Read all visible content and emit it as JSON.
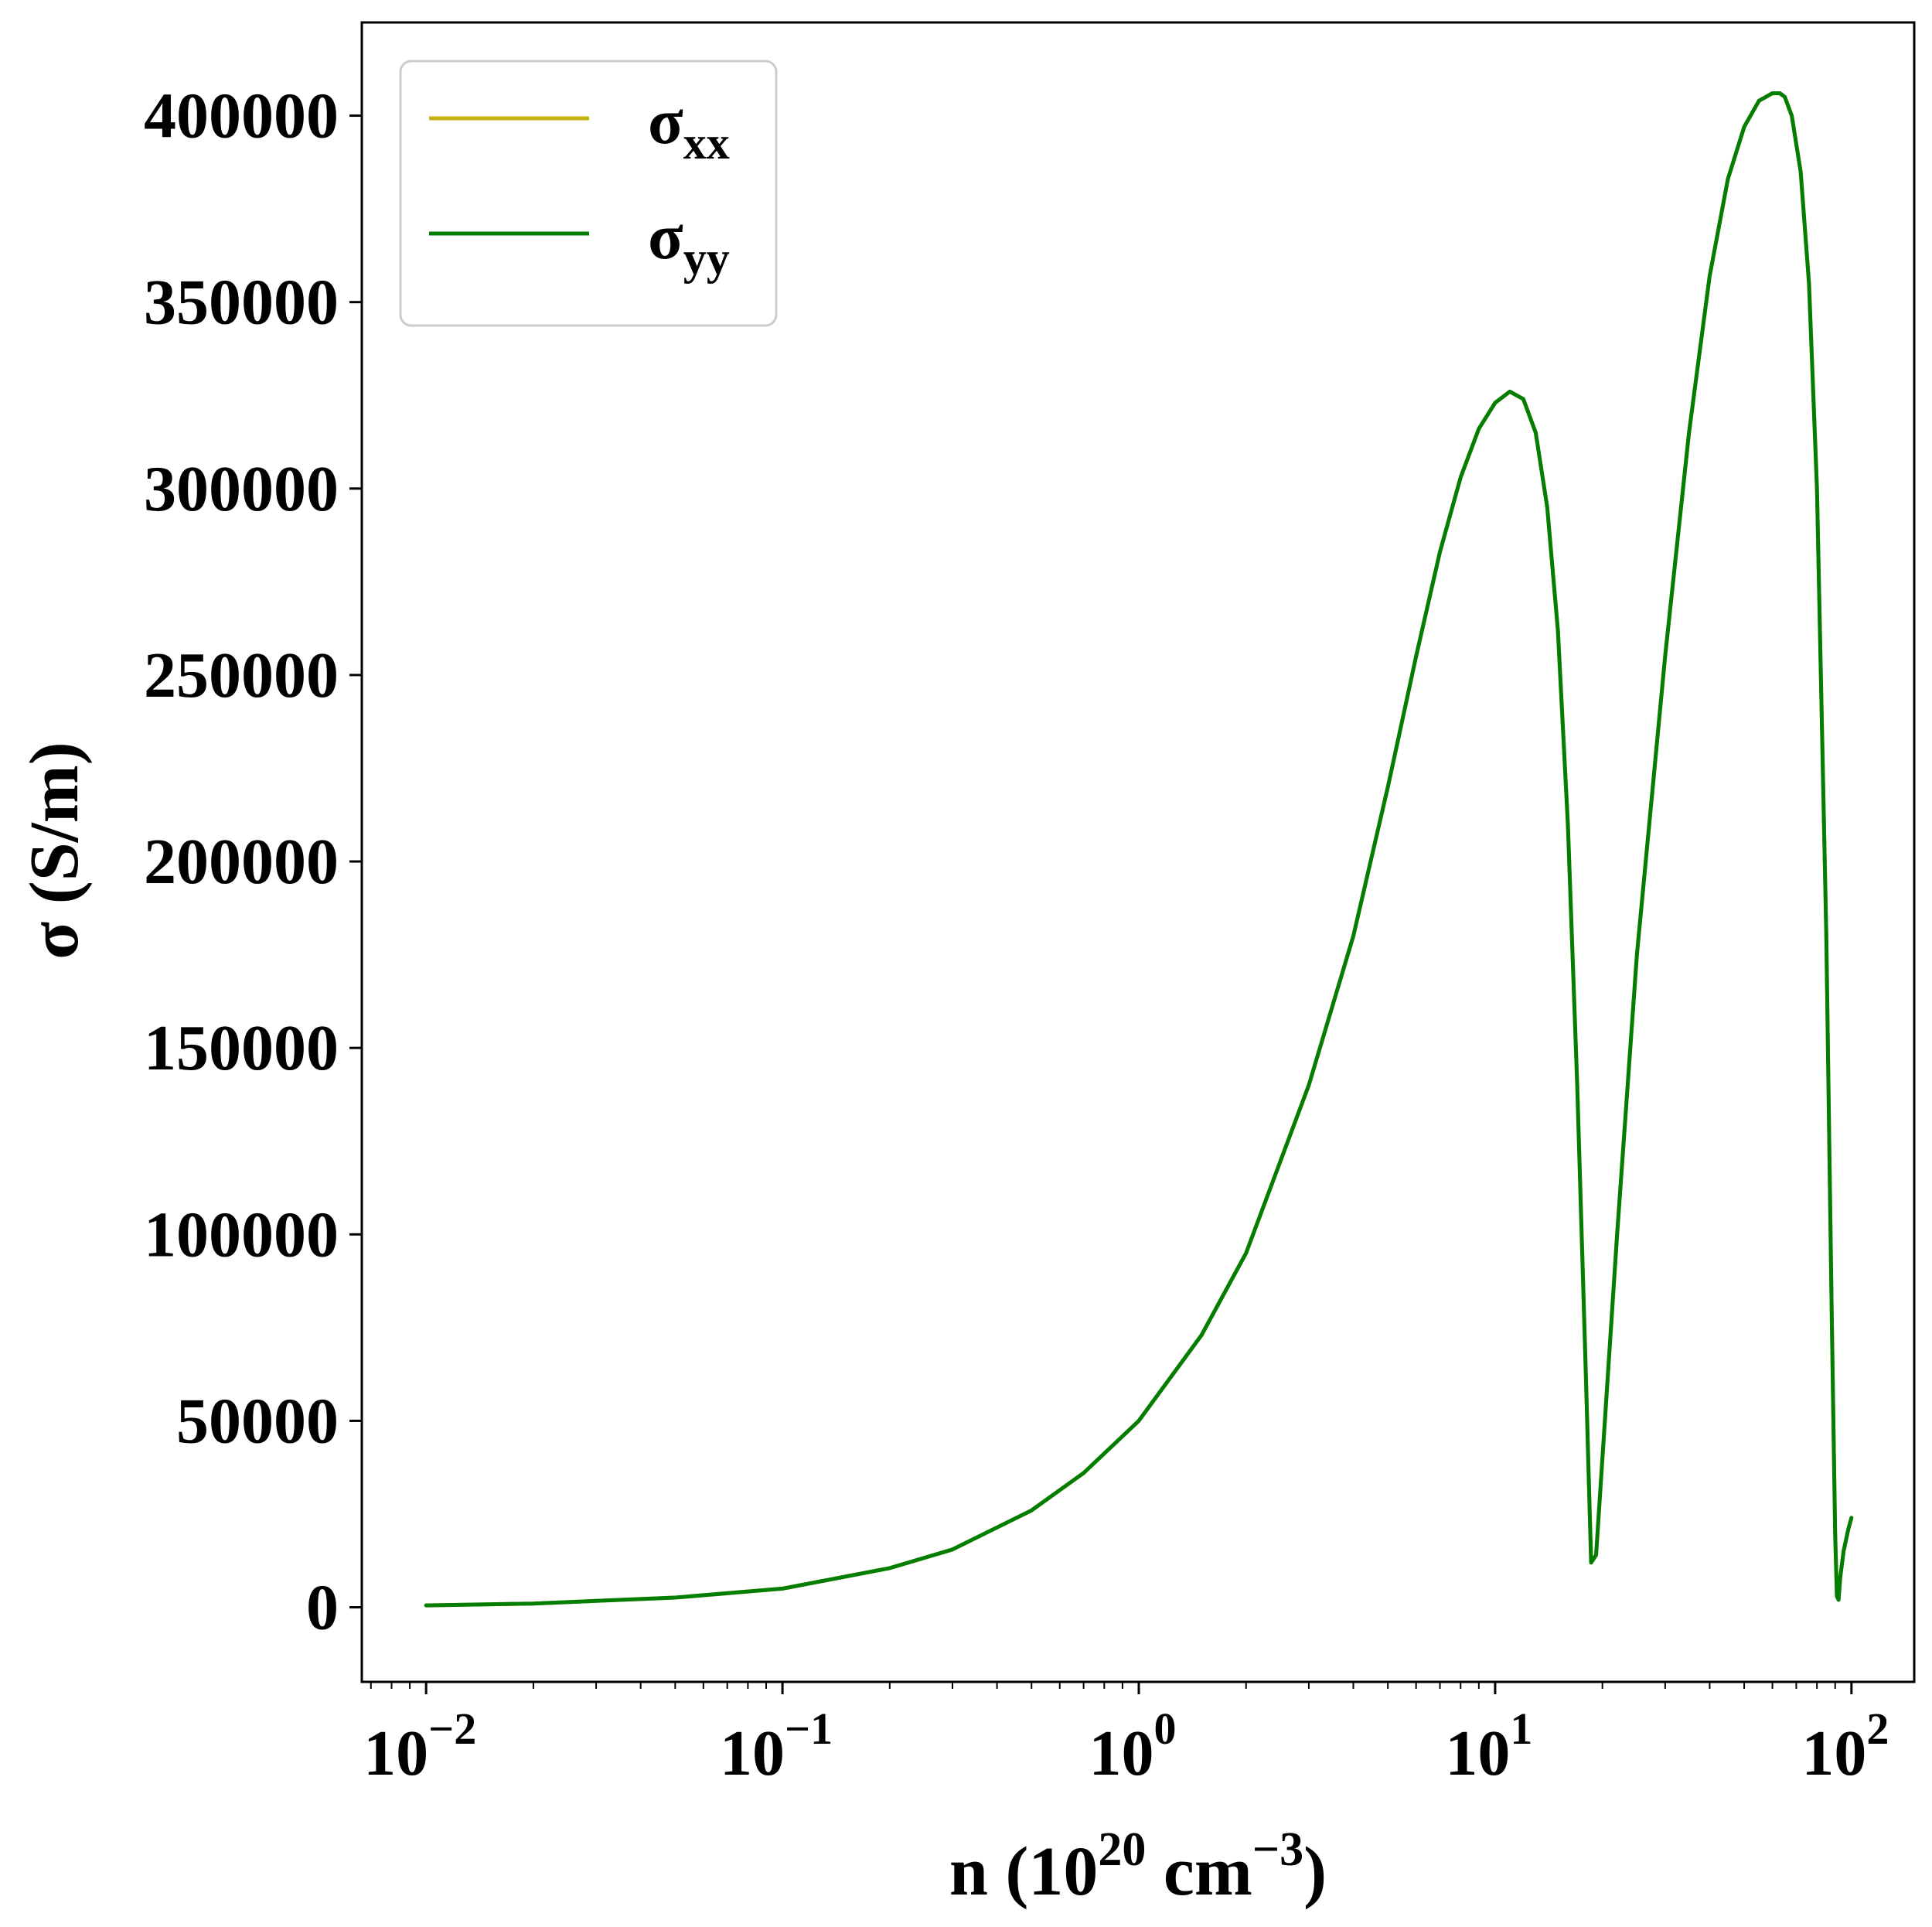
{
  "chart_data": {
    "type": "line",
    "xlabel": {
      "base": "n (10",
      "exp1": "20",
      "mid": " cm",
      "exp2": "−3",
      "end": ")"
    },
    "ylabel": "σ (S/m)",
    "xscale": "log",
    "xlim": [
      0.0066,
      150
    ],
    "ylim": [
      -20000,
      425000
    ],
    "grid": false,
    "legend_position": "upper-left",
    "x_ticks": [
      {
        "value": 0.01,
        "base": "10",
        "exp": "−2"
      },
      {
        "value": 0.1,
        "base": "10",
        "exp": "−1"
      },
      {
        "value": 1,
        "base": "10",
        "exp": "0"
      },
      {
        "value": 10,
        "base": "10",
        "exp": "1"
      },
      {
        "value": 100,
        "base": "10",
        "exp": "2"
      }
    ],
    "y_ticks": [
      0,
      50000,
      100000,
      150000,
      200000,
      250000,
      300000,
      350000,
      400000
    ],
    "y_tick_labels": [
      "0",
      "50000",
      "100000",
      "150000",
      "200000",
      "250000",
      "300000",
      "350000",
      "400000"
    ],
    "series": [
      {
        "name": "σxx",
        "legend_base": "σ",
        "legend_sub": "xx",
        "color": "#c7b310",
        "x": [
          0.01,
          0.02,
          0.05,
          0.1,
          0.2,
          0.3,
          0.5,
          0.7,
          1,
          1.5,
          2,
          3,
          4,
          5,
          6,
          7,
          8,
          9,
          10,
          11,
          12,
          13,
          14,
          15,
          16,
          17,
          18,
          18.6,
          19.2,
          20,
          22,
          25,
          30,
          35,
          40,
          45,
          50,
          55,
          60,
          63,
          65,
          68,
          72,
          76,
          80,
          85,
          88,
          90,
          91,
          92,
          93,
          95,
          98,
          100
        ],
        "values": [
          500,
          1000,
          2600,
          5000,
          10500,
          15500,
          26000,
          36000,
          50000,
          73000,
          95000,
          140000,
          180000,
          220000,
          255000,
          283000,
          303000,
          316000,
          323000,
          326000,
          324000,
          315000,
          295000,
          262000,
          210000,
          140000,
          60000,
          12000,
          14000,
          40000,
          100000,
          175000,
          255000,
          315000,
          357000,
          383000,
          397000,
          404000,
          406000,
          406000,
          405000,
          400000,
          385000,
          355000,
          300000,
          180000,
          80000,
          20000,
          3000,
          2000,
          8000,
          15000,
          21000,
          24000
        ]
      },
      {
        "name": "σyy",
        "legend_base": "σ",
        "legend_sub": "yy",
        "color": "#037e03",
        "x": [
          0.01,
          0.02,
          0.05,
          0.1,
          0.2,
          0.3,
          0.5,
          0.7,
          1,
          1.5,
          2,
          3,
          4,
          5,
          6,
          7,
          8,
          9,
          10,
          11,
          12,
          13,
          14,
          15,
          16,
          17,
          18,
          18.6,
          19.2,
          20,
          22,
          25,
          30,
          35,
          40,
          45,
          50,
          55,
          60,
          63,
          65,
          68,
          72,
          76,
          80,
          85,
          88,
          90,
          91,
          92,
          93,
          95,
          98,
          100
        ],
        "values": [
          500,
          1000,
          2600,
          5000,
          10500,
          15500,
          26000,
          36000,
          50000,
          73000,
          95000,
          140000,
          180000,
          220000,
          255000,
          283000,
          303000,
          316000,
          323000,
          326000,
          324000,
          315000,
          295000,
          262000,
          210000,
          140000,
          60000,
          12000,
          14000,
          40000,
          100000,
          175000,
          255000,
          315000,
          357000,
          383000,
          397000,
          404000,
          406000,
          406000,
          405000,
          400000,
          385000,
          355000,
          300000,
          180000,
          80000,
          20000,
          3000,
          2000,
          8000,
          15000,
          21000,
          24000
        ]
      }
    ]
  }
}
